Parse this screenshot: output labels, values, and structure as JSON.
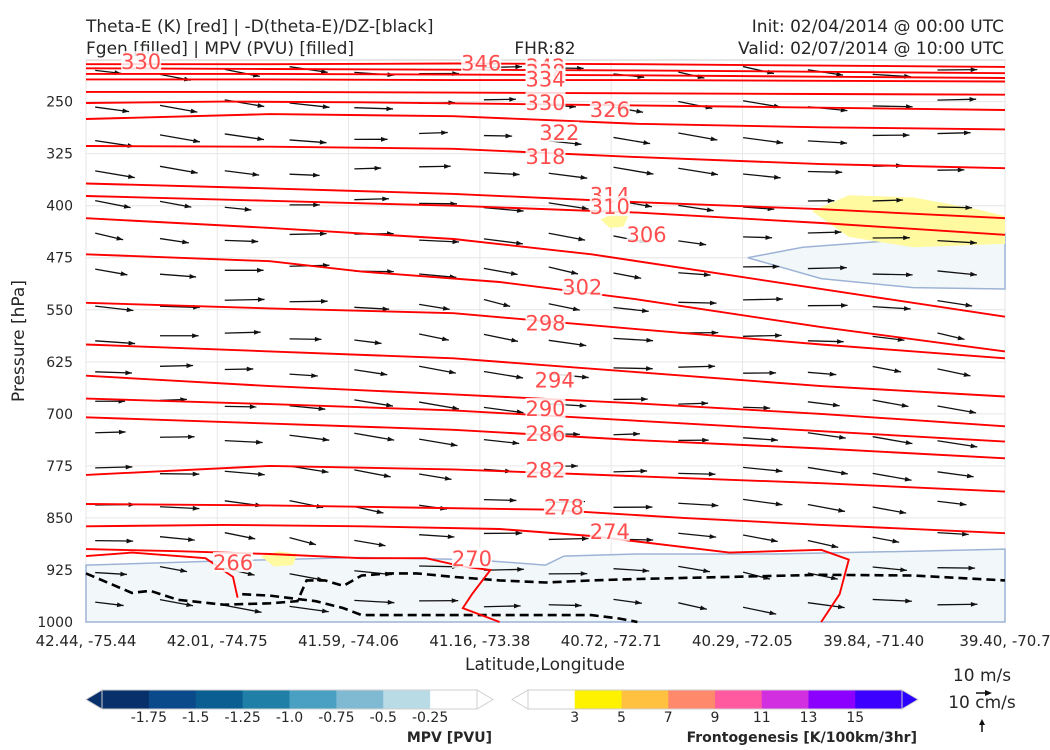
{
  "header": {
    "title_line1": "Theta-E (K) [red] | -D(theta-E)/DZ-[black]",
    "title_line2": "Fgen [filled] | MPV (PVU) [filled]",
    "fhr": "FHR:82",
    "init": "Init: 02/04/2014 @ 00:00 UTC",
    "valid": "Valid: 02/07/2014 @ 10:00 UTC"
  },
  "chart_data": {
    "type": "cross-section",
    "xlabel": "Latitude,Longitude",
    "ylabel": "Pressure [hPa]",
    "x_ticks": [
      "42.44, -75.44",
      "42.01, -74.75",
      "41.59, -74.06",
      "41.16, -73.38",
      "40.72, -72.71",
      "40.29, -72.05",
      "39.84, -71.40",
      "39.40, -70.7"
    ],
    "y_ticks": [
      250,
      325,
      400,
      475,
      550,
      625,
      700,
      775,
      850,
      925,
      1000
    ],
    "ylim": [
      1000,
      190
    ],
    "grid": true,
    "theta_e_contour_labels": [
      {
        "value": "330",
        "x_frac": 0.06,
        "p": 193
      },
      {
        "value": "346",
        "x_frac": 0.43,
        "p": 195
      },
      {
        "value": "342",
        "x_frac": 0.5,
        "p": 200
      },
      {
        "value": "338",
        "x_frac": 0.5,
        "p": 208
      },
      {
        "value": "334",
        "x_frac": 0.5,
        "p": 218
      },
      {
        "value": "330",
        "x_frac": 0.5,
        "p": 252
      },
      {
        "value": "326",
        "x_frac": 0.57,
        "p": 262
      },
      {
        "value": "322",
        "x_frac": 0.515,
        "p": 295
      },
      {
        "value": "318",
        "x_frac": 0.5,
        "p": 330
      },
      {
        "value": "314",
        "x_frac": 0.57,
        "p": 385
      },
      {
        "value": "310",
        "x_frac": 0.57,
        "p": 402
      },
      {
        "value": "306",
        "x_frac": 0.61,
        "p": 442
      },
      {
        "value": "302",
        "x_frac": 0.54,
        "p": 518
      },
      {
        "value": "298",
        "x_frac": 0.5,
        "p": 570
      },
      {
        "value": "294",
        "x_frac": 0.51,
        "p": 652
      },
      {
        "value": "290",
        "x_frac": 0.5,
        "p": 693
      },
      {
        "value": "286",
        "x_frac": 0.5,
        "p": 729
      },
      {
        "value": "282",
        "x_frac": 0.5,
        "p": 782
      },
      {
        "value": "278",
        "x_frac": 0.52,
        "p": 835
      },
      {
        "value": "274",
        "x_frac": 0.57,
        "p": 870
      },
      {
        "value": "270",
        "x_frac": 0.42,
        "p": 909
      },
      {
        "value": "266",
        "x_frac": 0.16,
        "p": 915
      }
    ],
    "theta_e_lines": [
      [
        [
          0,
          196
        ],
        [
          0.2,
          196
        ],
        [
          0.4,
          195
        ],
        [
          0.6,
          196
        ],
        [
          0.8,
          198
        ],
        [
          1,
          200
        ]
      ],
      [
        [
          0,
          202
        ],
        [
          0.2,
          203
        ],
        [
          0.4,
          204
        ],
        [
          0.6,
          205
        ],
        [
          0.8,
          207
        ],
        [
          1,
          209
        ]
      ],
      [
        [
          0,
          210
        ],
        [
          0.2,
          210
        ],
        [
          0.4,
          211
        ],
        [
          0.6,
          212
        ],
        [
          0.8,
          214
        ],
        [
          1,
          216
        ]
      ],
      [
        [
          0,
          218
        ],
        [
          0.2,
          218
        ],
        [
          0.4,
          219
        ],
        [
          0.6,
          219
        ],
        [
          0.8,
          220
        ],
        [
          1,
          221
        ]
      ],
      [
        [
          0,
          236
        ],
        [
          0.2,
          236
        ],
        [
          0.4,
          237
        ],
        [
          0.6,
          238
        ],
        [
          0.8,
          239
        ],
        [
          1,
          240
        ]
      ],
      [
        [
          0,
          252
        ],
        [
          0.15,
          250
        ],
        [
          0.3,
          251
        ],
        [
          0.5,
          254
        ],
        [
          0.7,
          257
        ],
        [
          1,
          262
        ]
      ],
      [
        [
          0,
          275
        ],
        [
          0.2,
          268
        ],
        [
          0.4,
          271
        ],
        [
          0.6,
          282
        ],
        [
          0.8,
          287
        ],
        [
          1,
          290
        ]
      ],
      [
        [
          0,
          314
        ],
        [
          0.2,
          315
        ],
        [
          0.4,
          318
        ],
        [
          0.6,
          330
        ],
        [
          0.8,
          340
        ],
        [
          1,
          346
        ]
      ],
      [
        [
          0,
          368
        ],
        [
          0.2,
          375
        ],
        [
          0.4,
          383
        ],
        [
          0.6,
          395
        ],
        [
          0.8,
          405
        ],
        [
          1,
          418
        ]
      ],
      [
        [
          0,
          386
        ],
        [
          0.2,
          393
        ],
        [
          0.4,
          400
        ],
        [
          0.6,
          410
        ],
        [
          0.8,
          425
        ],
        [
          1,
          442
        ]
      ],
      [
        [
          0,
          418
        ],
        [
          0.2,
          432
        ],
        [
          0.4,
          448
        ],
        [
          0.55,
          470
        ],
        [
          0.7,
          500
        ],
        [
          0.85,
          530
        ],
        [
          1,
          560
        ]
      ],
      [
        [
          0,
          470
        ],
        [
          0.2,
          480
        ],
        [
          0.3,
          495
        ],
        [
          0.45,
          510
        ],
        [
          0.6,
          535
        ],
        [
          0.8,
          575
        ],
        [
          1,
          610
        ]
      ],
      [
        [
          0,
          540
        ],
        [
          0.2,
          548
        ],
        [
          0.4,
          555
        ],
        [
          0.6,
          578
        ],
        [
          0.8,
          600
        ],
        [
          1,
          620
        ]
      ],
      [
        [
          0,
          600
        ],
        [
          0.2,
          610
        ],
        [
          0.4,
          620
        ],
        [
          0.6,
          640
        ],
        [
          0.8,
          660
        ],
        [
          1,
          675
        ]
      ],
      [
        [
          0,
          645
        ],
        [
          0.2,
          660
        ],
        [
          0.4,
          672
        ],
        [
          0.6,
          685
        ],
        [
          0.8,
          700
        ],
        [
          1,
          718
        ]
      ],
      [
        [
          0,
          678
        ],
        [
          0.2,
          686
        ],
        [
          0.4,
          695
        ],
        [
          0.6,
          710
        ],
        [
          0.8,
          725
        ],
        [
          1,
          740
        ]
      ],
      [
        [
          0,
          705
        ],
        [
          0.2,
          714
        ],
        [
          0.4,
          723
        ],
        [
          0.6,
          738
        ],
        [
          0.8,
          750
        ],
        [
          1,
          764
        ]
      ],
      [
        [
          0,
          788
        ],
        [
          0.2,
          775
        ],
        [
          0.4,
          780
        ],
        [
          0.6,
          790
        ],
        [
          0.8,
          800
        ],
        [
          1,
          812
        ]
      ],
      [
        [
          0,
          830
        ],
        [
          0.2,
          832
        ],
        [
          0.35,
          835
        ],
        [
          0.5,
          838
        ],
        [
          0.65,
          850
        ],
        [
          0.8,
          860
        ],
        [
          1,
          872
        ]
      ],
      [
        [
          0,
          862
        ],
        [
          0.15,
          860
        ],
        [
          0.3,
          862
        ],
        [
          0.45,
          866
        ],
        [
          0.55,
          876
        ],
        [
          0.7,
          900
        ],
        [
          0.8,
          896
        ],
        [
          0.83,
          910
        ],
        [
          0.82,
          960
        ],
        [
          0.8,
          1000
        ]
      ],
      [
        [
          0,
          895
        ],
        [
          0.1,
          898
        ],
        [
          0.2,
          902
        ],
        [
          0.3,
          908
        ],
        [
          0.37,
          908
        ],
        [
          0.41,
          920
        ],
        [
          0.44,
          925
        ],
        [
          0.42,
          960
        ],
        [
          0.41,
          980
        ],
        [
          0.45,
          1000
        ]
      ],
      [
        [
          0,
          905
        ],
        [
          0.05,
          900
        ],
        [
          0.13,
          908
        ],
        [
          0.16,
          935
        ],
        [
          0.165,
          965
        ]
      ]
    ],
    "stability_dashed_line": [
      [
        0,
        930
      ],
      [
        0.05,
        958
      ],
      [
        0.07,
        955
      ],
      [
        0.1,
        968
      ],
      [
        0.15,
        975
      ],
      [
        0.2,
        973
      ],
      [
        0.23,
        970
      ],
      [
        0.24,
        940
      ],
      [
        0.26,
        940
      ],
      [
        0.28,
        948
      ],
      [
        0.3,
        933
      ],
      [
        0.33,
        930
      ],
      [
        0.36,
        930
      ],
      [
        0.4,
        935
      ],
      [
        0.45,
        940
      ],
      [
        0.5,
        943
      ],
      [
        0.55,
        940
      ],
      [
        0.6,
        938
      ],
      [
        0.7,
        935
      ],
      [
        0.8,
        932
      ],
      [
        0.9,
        933
      ],
      [
        1,
        940
      ]
    ],
    "stability_dashed_line_2": [
      [
        0.17,
        960
      ],
      [
        0.2,
        962
      ],
      [
        0.25,
        970
      ],
      [
        0.28,
        980
      ],
      [
        0.3,
        990
      ],
      [
        0.35,
        990
      ],
      [
        0.45,
        990
      ],
      [
        0.55,
        990
      ],
      [
        0.58,
        995
      ],
      [
        0.6,
        1000
      ]
    ],
    "mpv_shading_regions": [
      [
        [
          0,
          918
        ],
        [
          0.15,
          912
        ],
        [
          0.3,
          907
        ],
        [
          0.42,
          910
        ],
        [
          0.5,
          918
        ],
        [
          0.52,
          905
        ],
        [
          0.6,
          902
        ],
        [
          0.75,
          902
        ],
        [
          0.9,
          898
        ],
        [
          1,
          895
        ],
        [
          1,
          1000
        ],
        [
          0,
          1000
        ]
      ],
      [
        [
          0.72,
          475
        ],
        [
          0.78,
          460
        ],
        [
          0.9,
          448
        ],
        [
          1,
          440
        ],
        [
          1,
          520
        ],
        [
          0.9,
          518
        ],
        [
          0.8,
          505
        ]
      ]
    ],
    "fgen_shading_regions": [
      [
        [
          0.79,
          408
        ],
        [
          0.83,
          385
        ],
        [
          0.9,
          388
        ],
        [
          0.97,
          405
        ],
        [
          1,
          415
        ],
        [
          1,
          455
        ],
        [
          0.9,
          460
        ],
        [
          0.83,
          445
        ]
      ],
      [
        [
          0.56,
          420
        ],
        [
          0.575,
          410
        ],
        [
          0.59,
          415
        ],
        [
          0.585,
          430
        ],
        [
          0.57,
          432
        ]
      ],
      [
        [
          0.19,
          905
        ],
        [
          0.21,
          898
        ],
        [
          0.23,
          902
        ],
        [
          0.225,
          918
        ],
        [
          0.205,
          920
        ]
      ]
    ],
    "mpv_colorbar": {
      "label": "MPV [PVU]",
      "tick_labels": [
        "-1.75",
        "-1.5",
        "-1.25",
        "-1.0",
        "-0.75",
        "-0.5",
        "-0.25"
      ],
      "colors": [
        "#08306b",
        "#08306b",
        "#0b4a8a",
        "#0a5e91",
        "#1f7fa7",
        "#4aa0c2",
        "#7fbad2",
        "#b9dbe6",
        "#ffffff",
        "#ffffff"
      ]
    },
    "fgen_colorbar": {
      "label": "Frontogenesis [K/100km/3hr]",
      "tick_labels": [
        "3",
        "5",
        "7",
        "9",
        "11",
        "13",
        "15"
      ],
      "colors": [
        "#ffffff",
        "#ffffff",
        "#fff200",
        "#ffc13f",
        "#ff8a6b",
        "#ff5aa0",
        "#d22fe0",
        "#8b00ff",
        "#3b00ff",
        "#2b00ff"
      ]
    },
    "wind_key": {
      "horizontal": "10 m/s",
      "vertical": "10 cm/s"
    },
    "colors": {
      "theta_e": "#ff0000",
      "label": "#ff4d4d",
      "stability": "#000000",
      "mpv_light": "#f2f8fa",
      "mpv_edge": "#9db3d6",
      "fgen": "#fffaa0"
    }
  }
}
